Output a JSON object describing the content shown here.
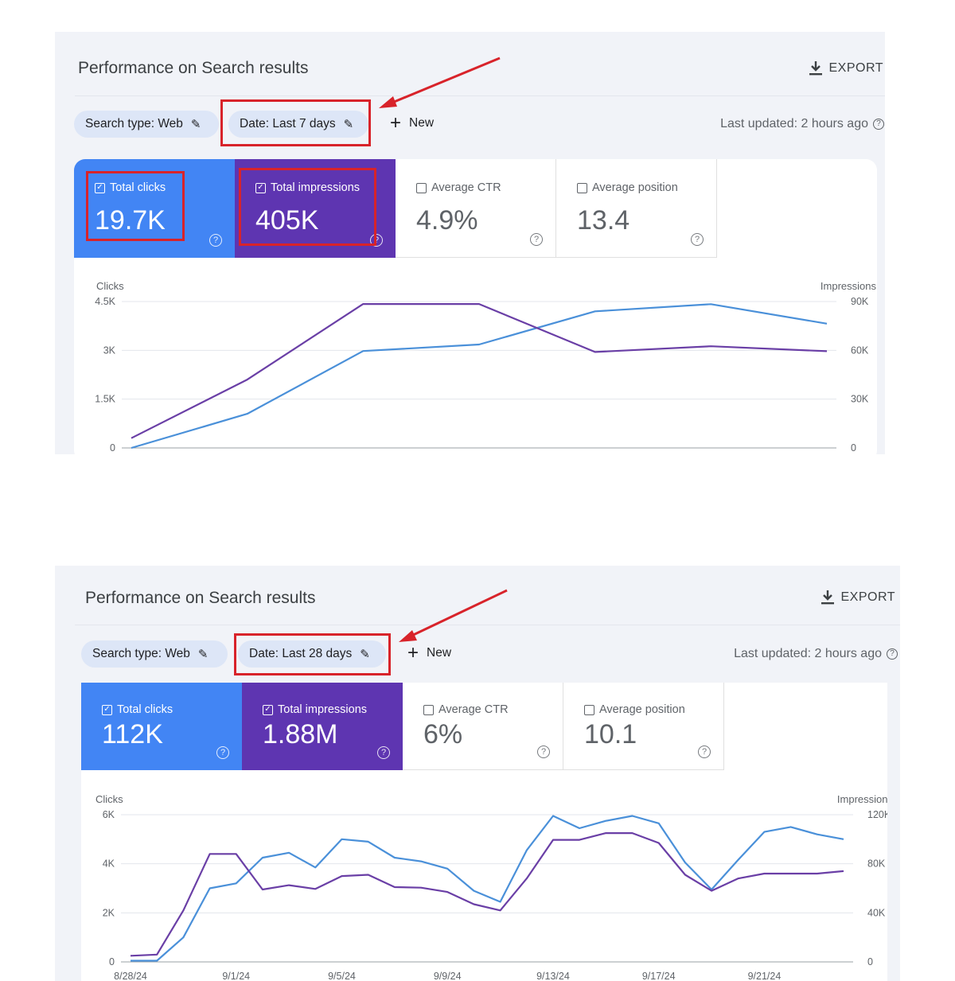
{
  "panels": [
    {
      "title": "Performance on Search results",
      "export_label": "EXPORT",
      "chips": {
        "search_type": "Search type: Web",
        "date": "Date: Last 7 days"
      },
      "new_label": "New",
      "last_updated": "Last updated: 2 hours ago",
      "metrics": [
        {
          "label": "Total clicks",
          "value": "19.7K",
          "checked": true
        },
        {
          "label": "Total impressions",
          "value": "405K",
          "checked": true
        },
        {
          "label": "Average CTR",
          "value": "4.9%",
          "checked": false
        },
        {
          "label": "Average position",
          "value": "13.4",
          "checked": false
        }
      ],
      "chart_data": {
        "type": "line",
        "ylabel_left": "Clicks",
        "ylabel_right": "Impressions",
        "yticks_left": [
          "4.5K",
          "3K",
          "1.5K",
          "0"
        ],
        "yticks_right": [
          "90K",
          "60K",
          "30K",
          "0"
        ],
        "ylim_left": [
          0,
          4500
        ],
        "ylim_right": [
          0,
          90000
        ],
        "xlabels": [],
        "series": [
          {
            "name": "Clicks",
            "axis": "left",
            "color": "#4a90d9",
            "values": [
              0,
              1050,
              2980,
              3180,
              4200,
              4420,
              3820
            ]
          },
          {
            "name": "Impressions",
            "axis": "right",
            "color": "#6a3fa6",
            "values": [
              6000,
              42000,
              88500,
              88500,
              59000,
              62500,
              59500
            ]
          }
        ]
      }
    },
    {
      "title": "Performance on Search results",
      "export_label": "EXPORT",
      "chips": {
        "search_type": "Search type: Web",
        "date": "Date: Last 28 days"
      },
      "new_label": "New",
      "last_updated": "Last updated: 2 hours ago",
      "metrics": [
        {
          "label": "Total clicks",
          "value": "112K",
          "checked": true
        },
        {
          "label": "Total impressions",
          "value": "1.88M",
          "checked": true
        },
        {
          "label": "Average CTR",
          "value": "6%",
          "checked": false
        },
        {
          "label": "Average position",
          "value": "10.1",
          "checked": false
        }
      ],
      "chart_data": {
        "type": "line",
        "ylabel_left": "Clicks",
        "ylabel_right": "Impressions",
        "yticks_left": [
          "6K",
          "4K",
          "2K",
          "0"
        ],
        "yticks_right": [
          "120K",
          "80K",
          "40K",
          "0"
        ],
        "ylim_left": [
          0,
          6000
        ],
        "ylim_right": [
          0,
          120000
        ],
        "xlabels": [
          "8/28/24",
          "9/1/24",
          "9/5/24",
          "9/9/24",
          "9/13/24",
          "9/17/24",
          "9/21/24"
        ],
        "series": [
          {
            "name": "Clicks",
            "axis": "left",
            "color": "#4a90d9",
            "values": [
              50,
              50,
              1000,
              3000,
              3200,
              4250,
              4450,
              3850,
              5000,
              4900,
              4250,
              4100,
              3800,
              2900,
              2450,
              4550,
              5950,
              5450,
              5750,
              5950,
              5650,
              4050,
              2950,
              4150,
              5300,
              5500,
              5200,
              5000
            ]
          },
          {
            "name": "Impressions",
            "axis": "right",
            "color": "#6a3fa6",
            "values": [
              5000,
              6000,
              42000,
              88000,
              88000,
              59000,
              62500,
              59500,
              70000,
              71000,
              61000,
              60500,
              57000,
              47000,
              42000,
              68000,
              99500,
              99500,
              105000,
              105000,
              97000,
              71000,
              58000,
              68000,
              72000,
              72000,
              72000,
              74000
            ]
          }
        ]
      }
    }
  ]
}
